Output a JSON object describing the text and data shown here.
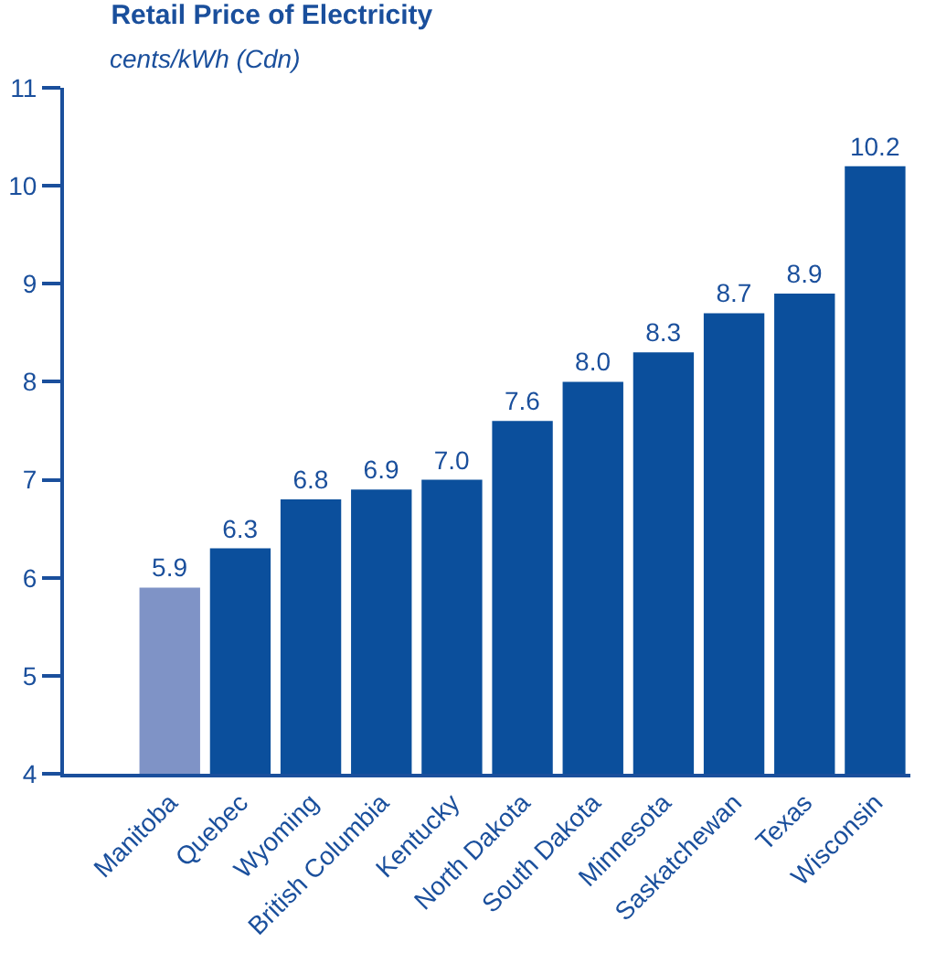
{
  "chart_data": {
    "type": "bar",
    "title": "Retail Price of Electricity",
    "subtitle": "cents/kWh (Cdn)",
    "categories": [
      "Manitoba",
      "Quebec",
      "Wyoming",
      "British Columbia",
      "Kentucky",
      "North Dakota",
      "South Dakota",
      "Minnesota",
      "Saskatchewan",
      "Texas",
      "Wisconsin"
    ],
    "values": [
      5.9,
      6.3,
      6.8,
      6.9,
      7.0,
      7.6,
      8.0,
      8.3,
      8.7,
      8.9,
      10.2
    ],
    "colors": [
      "#7f93c6",
      "#0b4f9c",
      "#0b4f9c",
      "#0b4f9c",
      "#0b4f9c",
      "#0b4f9c",
      "#0b4f9c",
      "#0b4f9c",
      "#0b4f9c",
      "#0b4f9c",
      "#0b4f9c"
    ],
    "value_labels": [
      "5.9",
      "6.3",
      "6.8",
      "6.9",
      "7.0",
      "7.6",
      "8.0",
      "8.3",
      "8.7",
      "8.9",
      "10.2"
    ],
    "ylim": [
      4,
      11
    ],
    "yticks": [
      4,
      5,
      6,
      7,
      8,
      9,
      10,
      11
    ],
    "grid": false
  }
}
